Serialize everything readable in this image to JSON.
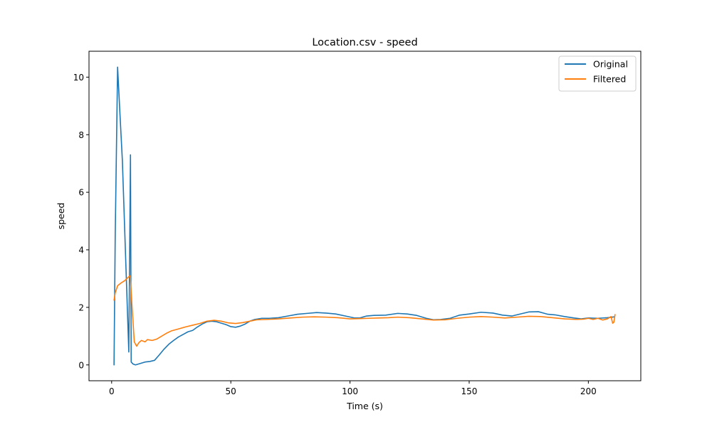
{
  "chart_data": {
    "type": "line",
    "title": "Location.csv - speed",
    "xlabel": "Time (s)",
    "ylabel": "speed",
    "xlim": [
      -9.5,
      222
    ],
    "ylim": [
      -0.55,
      10.9
    ],
    "x_ticks": [
      0,
      50,
      100,
      150,
      200
    ],
    "y_ticks": [
      0,
      2,
      4,
      6,
      8,
      10
    ],
    "grid": false,
    "legend_position": "top-right",
    "series": [
      {
        "name": "Original",
        "color": "#1f77b4",
        "points": [
          [
            1.0,
            0.0
          ],
          [
            1.5,
            4.5
          ],
          [
            2.5,
            10.35
          ],
          [
            3.5,
            8.7
          ],
          [
            4.5,
            7.1
          ],
          [
            7.2,
            0.45
          ],
          [
            7.9,
            7.3
          ],
          [
            8.2,
            0.1
          ],
          [
            9,
            0.03
          ],
          [
            10,
            0.0
          ],
          [
            12,
            0.05
          ],
          [
            14,
            0.1
          ],
          [
            16,
            0.12
          ],
          [
            18,
            0.16
          ],
          [
            20,
            0.35
          ],
          [
            22,
            0.55
          ],
          [
            24,
            0.72
          ],
          [
            26,
            0.85
          ],
          [
            28,
            0.97
          ],
          [
            30,
            1.06
          ],
          [
            32,
            1.15
          ],
          [
            34,
            1.2
          ],
          [
            36,
            1.32
          ],
          [
            38,
            1.42
          ],
          [
            40,
            1.5
          ],
          [
            42,
            1.52
          ],
          [
            44,
            1.5
          ],
          [
            46,
            1.45
          ],
          [
            48,
            1.4
          ],
          [
            50,
            1.33
          ],
          [
            52,
            1.31
          ],
          [
            54,
            1.35
          ],
          [
            56,
            1.42
          ],
          [
            58,
            1.52
          ],
          [
            60,
            1.58
          ],
          [
            63,
            1.62
          ],
          [
            66,
            1.62
          ],
          [
            70,
            1.64
          ],
          [
            74,
            1.7
          ],
          [
            78,
            1.76
          ],
          [
            82,
            1.79
          ],
          [
            86,
            1.82
          ],
          [
            90,
            1.8
          ],
          [
            94,
            1.77
          ],
          [
            98,
            1.7
          ],
          [
            102,
            1.63
          ],
          [
            104,
            1.63
          ],
          [
            107,
            1.7
          ],
          [
            110,
            1.72
          ],
          [
            115,
            1.73
          ],
          [
            120,
            1.79
          ],
          [
            124,
            1.77
          ],
          [
            128,
            1.72
          ],
          [
            132,
            1.62
          ],
          [
            135,
            1.57
          ],
          [
            138,
            1.58
          ],
          [
            142,
            1.62
          ],
          [
            146,
            1.73
          ],
          [
            150,
            1.77
          ],
          [
            155,
            1.83
          ],
          [
            160,
            1.8
          ],
          [
            164,
            1.73
          ],
          [
            168,
            1.7
          ],
          [
            172,
            1.78
          ],
          [
            175,
            1.84
          ],
          [
            179,
            1.85
          ],
          [
            183,
            1.76
          ],
          [
            186,
            1.74
          ],
          [
            190,
            1.68
          ],
          [
            194,
            1.63
          ],
          [
            197,
            1.6
          ],
          [
            200,
            1.63
          ],
          [
            204,
            1.62
          ],
          [
            208,
            1.64
          ],
          [
            211,
            1.67
          ]
        ]
      },
      {
        "name": "Filtered",
        "color": "#ff7f0e",
        "points": [
          [
            1.0,
            2.25
          ],
          [
            1.5,
            2.5
          ],
          [
            2.5,
            2.75
          ],
          [
            4,
            2.85
          ],
          [
            5.5,
            2.93
          ],
          [
            7,
            3.05
          ],
          [
            7.8,
            3.1
          ],
          [
            8.5,
            2.1
          ],
          [
            9.5,
            0.8
          ],
          [
            10.5,
            0.65
          ],
          [
            11.5,
            0.78
          ],
          [
            12.5,
            0.85
          ],
          [
            14,
            0.8
          ],
          [
            15,
            0.88
          ],
          [
            17,
            0.85
          ],
          [
            19,
            0.9
          ],
          [
            21,
            1.0
          ],
          [
            23,
            1.1
          ],
          [
            25,
            1.18
          ],
          [
            28,
            1.25
          ],
          [
            31,
            1.32
          ],
          [
            34,
            1.38
          ],
          [
            37,
            1.44
          ],
          [
            40,
            1.52
          ],
          [
            43,
            1.55
          ],
          [
            46,
            1.52
          ],
          [
            49,
            1.46
          ],
          [
            52,
            1.44
          ],
          [
            55,
            1.47
          ],
          [
            58,
            1.52
          ],
          [
            61,
            1.57
          ],
          [
            65,
            1.58
          ],
          [
            70,
            1.6
          ],
          [
            75,
            1.63
          ],
          [
            80,
            1.66
          ],
          [
            85,
            1.67
          ],
          [
            90,
            1.66
          ],
          [
            95,
            1.64
          ],
          [
            100,
            1.6
          ],
          [
            104,
            1.61
          ],
          [
            108,
            1.62
          ],
          [
            112,
            1.63
          ],
          [
            116,
            1.64
          ],
          [
            120,
            1.66
          ],
          [
            125,
            1.64
          ],
          [
            130,
            1.6
          ],
          [
            135,
            1.56
          ],
          [
            140,
            1.57
          ],
          [
            145,
            1.62
          ],
          [
            150,
            1.66
          ],
          [
            155,
            1.68
          ],
          [
            160,
            1.66
          ],
          [
            165,
            1.63
          ],
          [
            170,
            1.66
          ],
          [
            175,
            1.69
          ],
          [
            180,
            1.68
          ],
          [
            185,
            1.64
          ],
          [
            190,
            1.6
          ],
          [
            195,
            1.58
          ],
          [
            198,
            1.59
          ],
          [
            200,
            1.62
          ],
          [
            202,
            1.58
          ],
          [
            204,
            1.62
          ],
          [
            206,
            1.56
          ],
          [
            208,
            1.6
          ],
          [
            209.5,
            1.68
          ],
          [
            210.2,
            1.45
          ],
          [
            210.7,
            1.48
          ],
          [
            211.2,
            1.75
          ]
        ]
      }
    ]
  }
}
